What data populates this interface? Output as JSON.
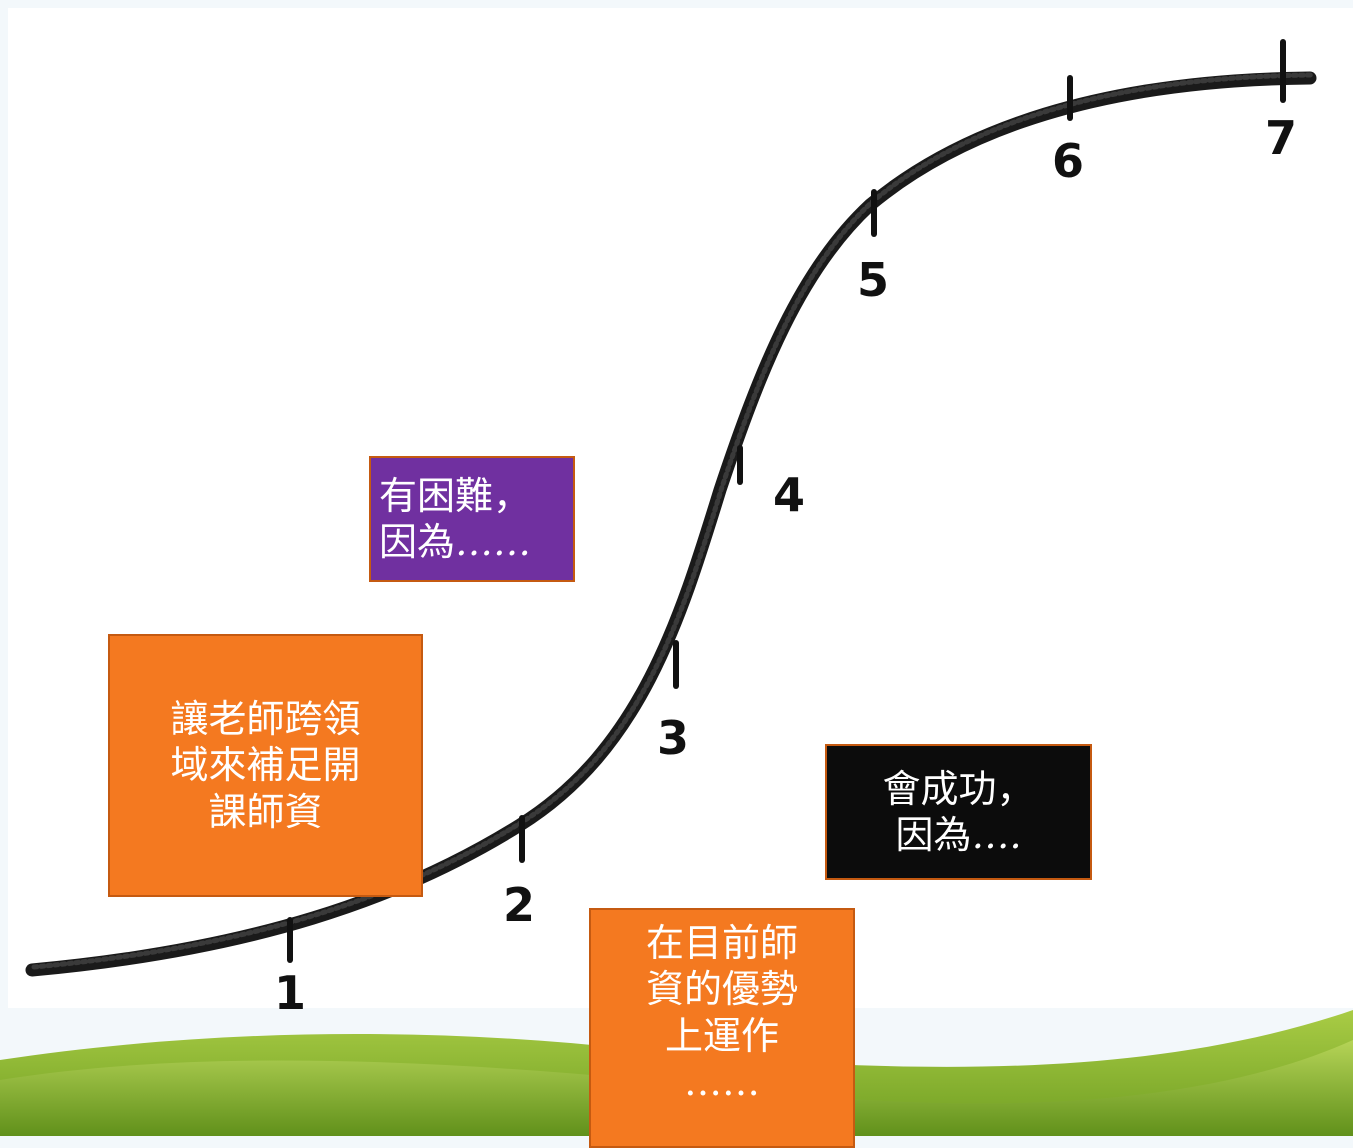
{
  "curve": {
    "tick_labels": [
      "1",
      "2",
      "3",
      "4",
      "5",
      "6",
      "7"
    ]
  },
  "notes": {
    "purple": {
      "line1": "有困難，",
      "line2": "因為",
      "ellipsis": "……"
    },
    "left_orange": {
      "line1": "讓老師跨領",
      "line2": "域來補足開",
      "line3": "課師資"
    },
    "black": {
      "line1": "會成功，",
      "line2": "因為",
      "ellipsis": "…."
    },
    "bottom_orange": {
      "line1": "在目前師",
      "line2": "資的優勢",
      "line3": "上運作",
      "line4": "……"
    }
  },
  "colors": {
    "purple_box": "#7030a0",
    "orange_box": "#f47920",
    "black_box": "#0c0c0c",
    "box_border": "#c55a11",
    "curve": "#111111",
    "grass_dark": "#5a8f1c",
    "grass_light": "#9cc23c"
  }
}
